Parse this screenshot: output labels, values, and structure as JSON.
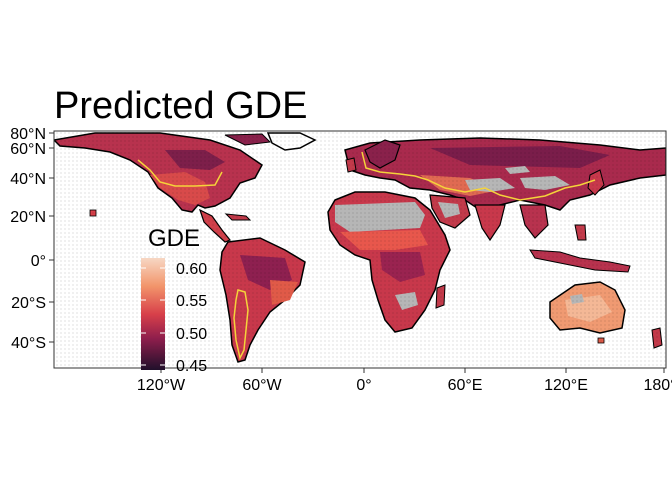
{
  "map": {
    "title": "Predicted GDE",
    "lat_ticks": [
      "80°N",
      "60°N",
      "40°N",
      "20°N",
      "0°",
      "20°S",
      "40°S"
    ],
    "lon_ticks": [
      "120°W",
      "60°W",
      "0°",
      "60°E",
      "120°E",
      "180°"
    ],
    "legend": {
      "title": "GDE",
      "labels": [
        "0.60",
        "0.55",
        "0.50",
        "0.45"
      ]
    },
    "colors": {
      "high": "#f7d7c4",
      "upper": "#ef8a62",
      "mid": "#d8404a",
      "lower": "#a0204a",
      "low": "#2d0e33",
      "no_data": "#b6b6b6",
      "coastline": "#000000",
      "boundary_line": "#f5d33a",
      "frame": "#333333"
    }
  }
}
